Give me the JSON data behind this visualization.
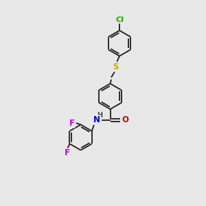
{
  "background_color": "#e8e8e8",
  "bond_color": "#1a1a1a",
  "atom_colors": {
    "Cl": "#00bb00",
    "S": "#ccaa00",
    "N": "#0000cc",
    "O": "#cc0000",
    "F": "#cc00cc",
    "H": "#444444"
  },
  "figsize": [
    3.0,
    3.0
  ],
  "dpi": 100,
  "lw": 1.3
}
